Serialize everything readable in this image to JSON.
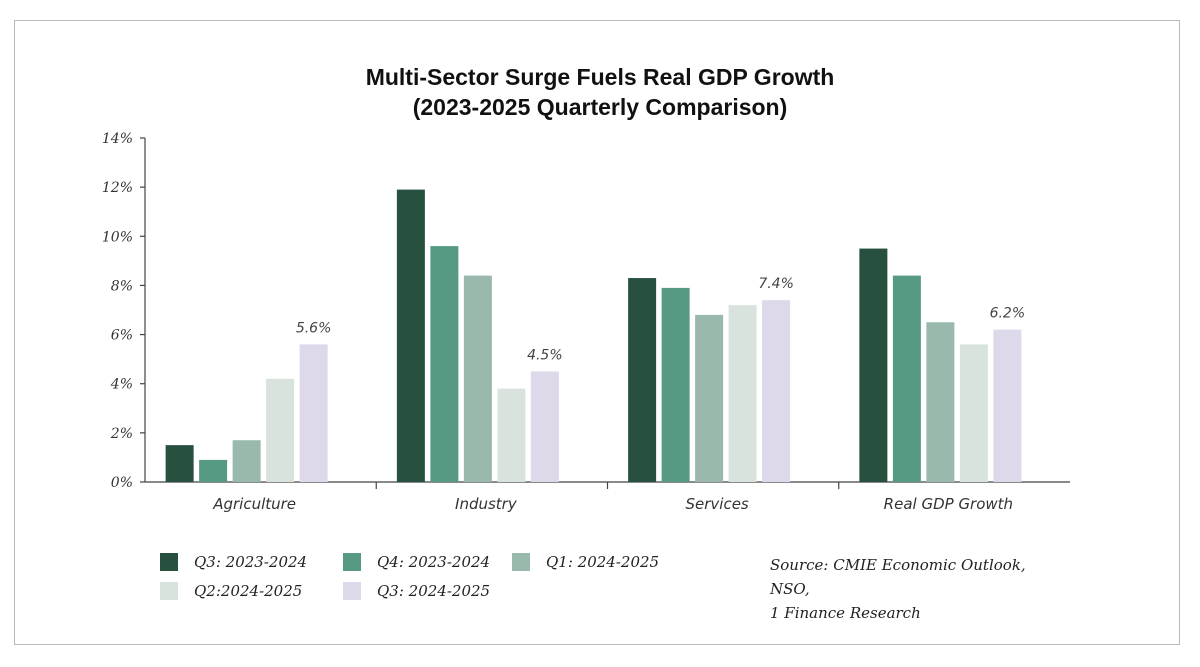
{
  "chart_data": {
    "type": "bar",
    "title": "Multi-Sector Surge Fuels Real GDP Growth",
    "subtitle": "(2023-2025 Quarterly Comparison)",
    "categories": [
      "Agriculture",
      "Industry",
      "Services",
      "Real GDP Growth"
    ],
    "series": [
      {
        "name": "Q3: 2023-2024",
        "color": "#27503f",
        "values": [
          1.5,
          11.9,
          8.3,
          9.5
        ]
      },
      {
        "name": "Q4: 2023-2024",
        "color": "#569a83",
        "values": [
          0.9,
          9.6,
          7.9,
          8.4
        ]
      },
      {
        "name": "Q1: 2024-2025",
        "color": "#98b9ab",
        "values": [
          1.7,
          8.4,
          6.8,
          6.5
        ]
      },
      {
        "name": "Q2:2024-2025",
        "color": "#d9e3dd",
        "values": [
          4.2,
          3.8,
          7.2,
          5.6
        ]
      },
      {
        "name": "Q3: 2024-2025",
        "color": "#ddd8ea",
        "values": [
          5.6,
          4.5,
          7.4,
          6.2
        ]
      }
    ],
    "data_labels": [
      {
        "category": "Agriculture",
        "series": "Q3: 2024-2025",
        "text": "5.6%"
      },
      {
        "category": "Industry",
        "series": "Q3: 2024-2025",
        "text": "4.5%"
      },
      {
        "category": "Services",
        "series": "Q3: 2024-2025",
        "text": "7.4%"
      },
      {
        "category": "Real GDP Growth",
        "series": "Q3: 2024-2025",
        "text": "6.2%"
      }
    ],
    "yticks": [
      "0%",
      "2%",
      "4%",
      "6%",
      "8%",
      "10%",
      "12%",
      "14%"
    ],
    "ylim": [
      0,
      14
    ],
    "grid": false,
    "legend_position": "bottom-left"
  },
  "source": {
    "line1": "Source: CMIE Economic Outlook, NSO,",
    "line2": "1 Finance Research"
  }
}
